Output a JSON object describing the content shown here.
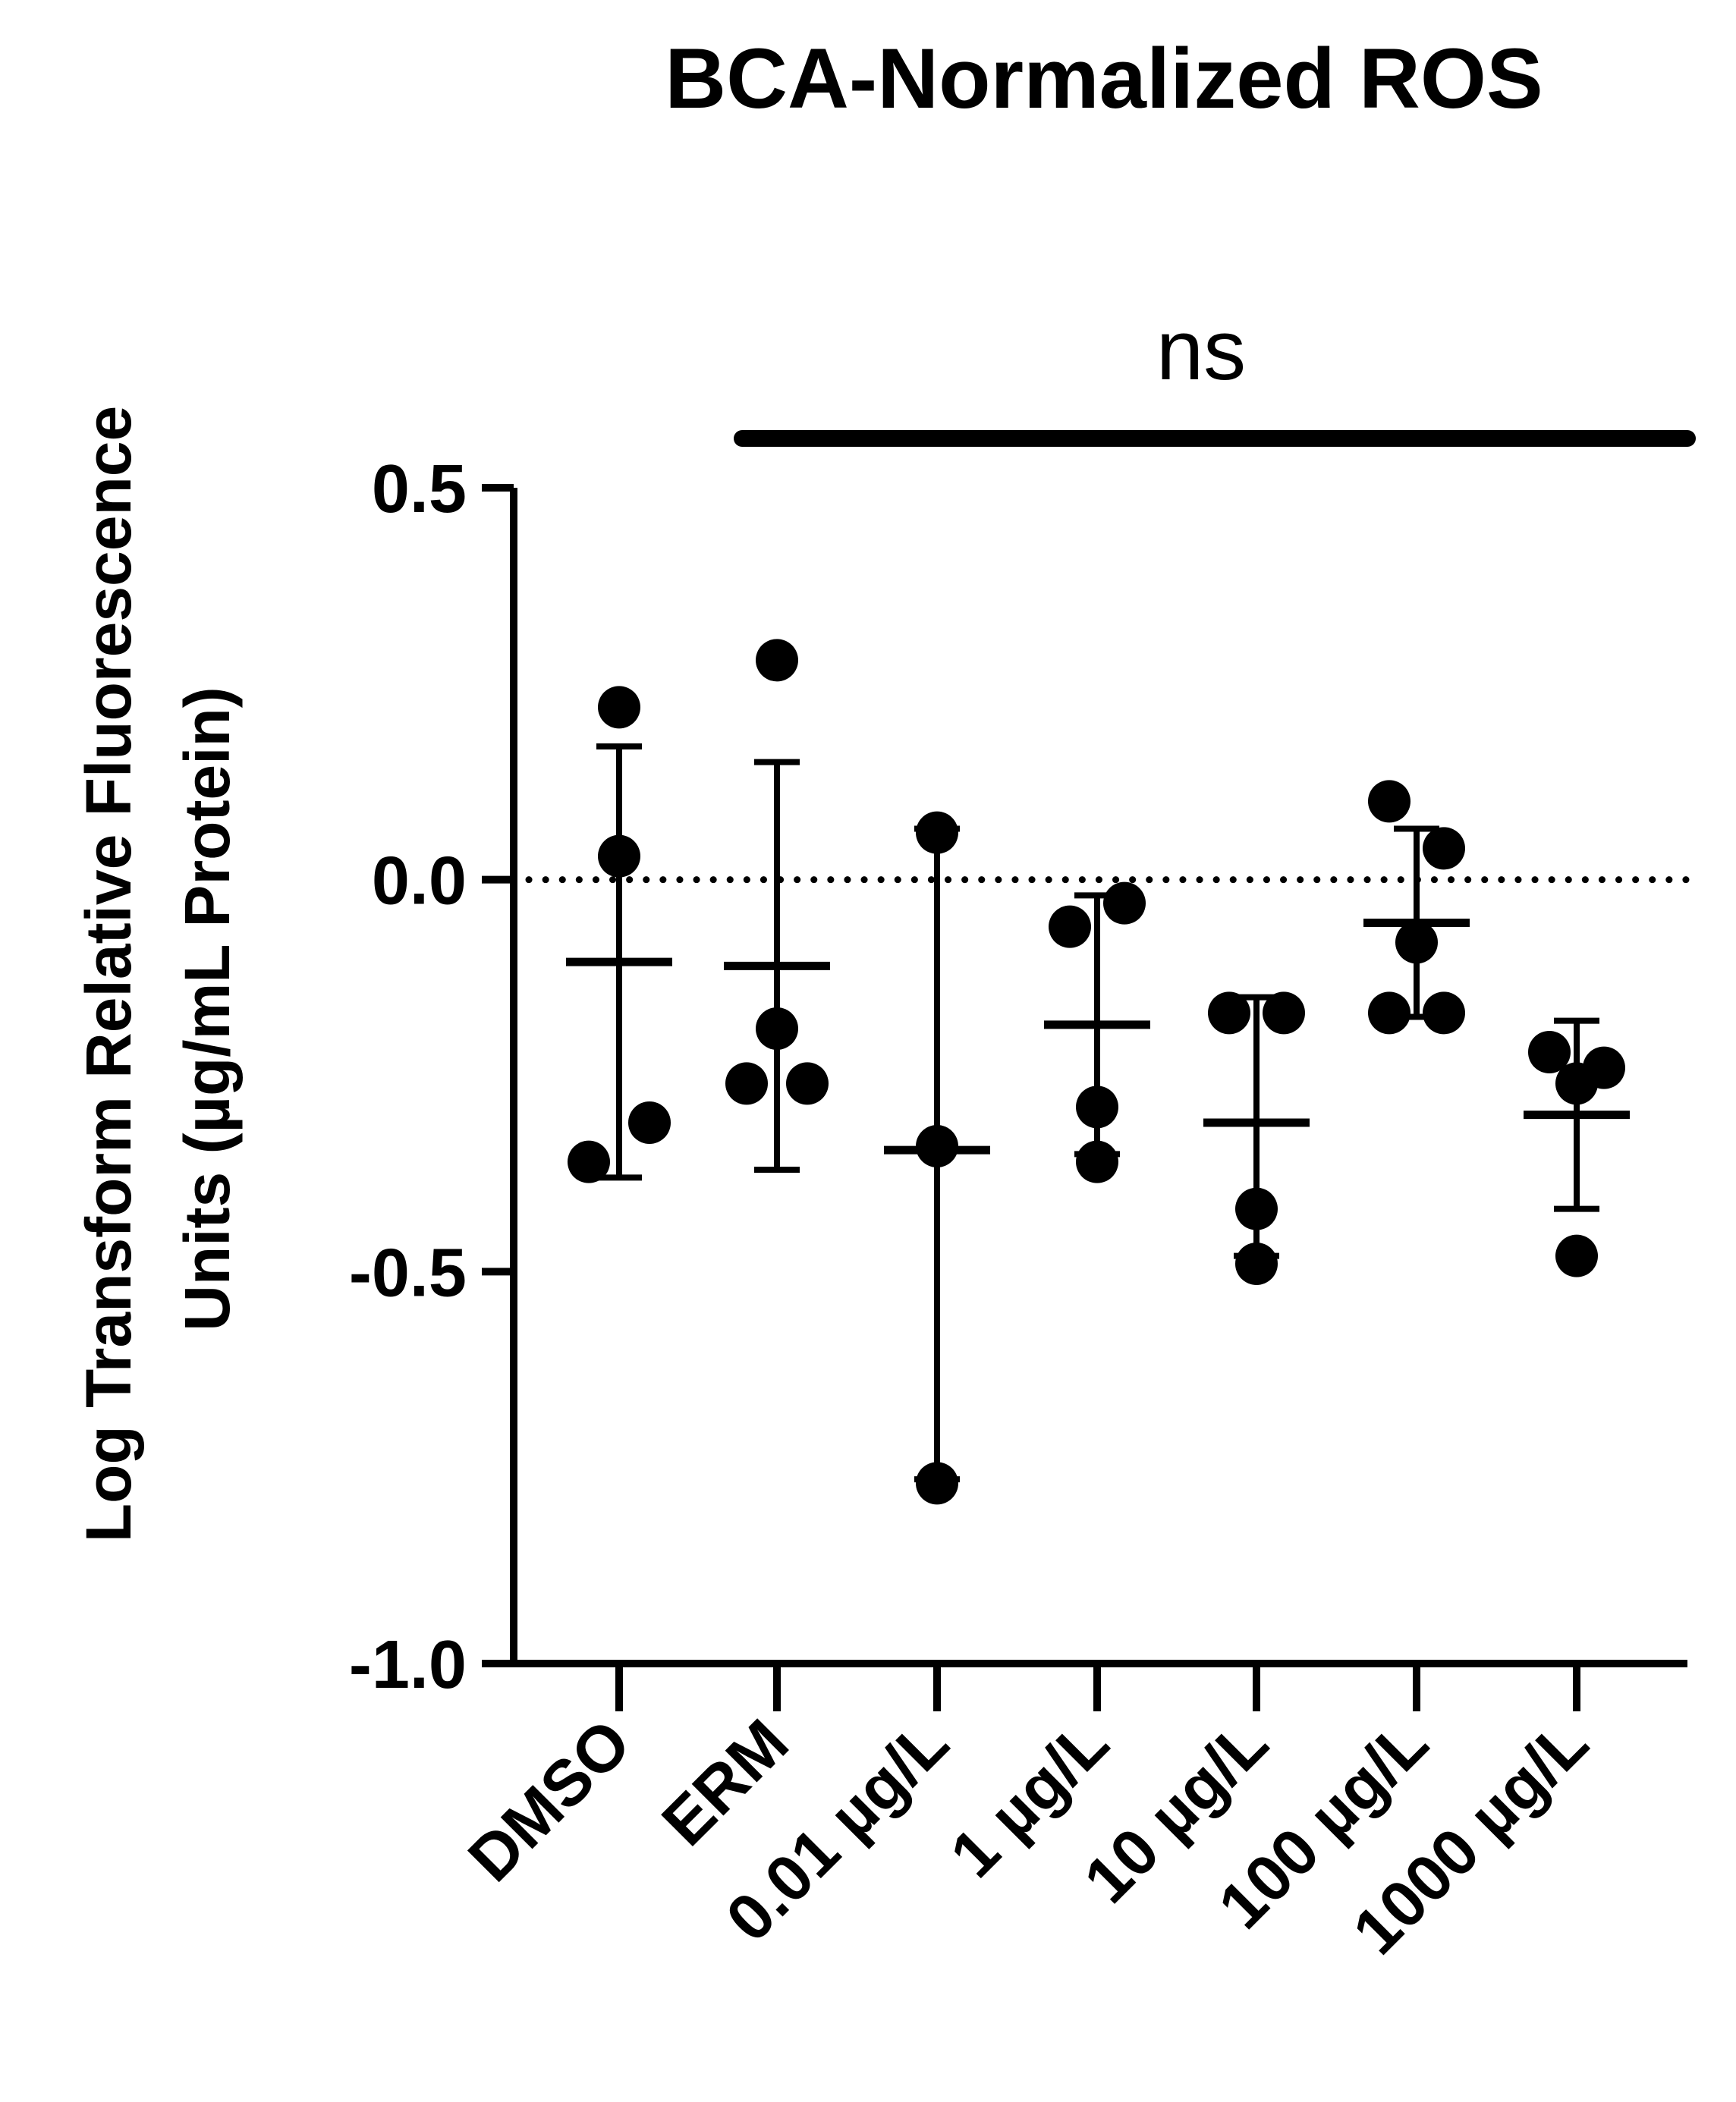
{
  "chart_data": {
    "type": "scatter",
    "title": "BCA-Normalized ROS",
    "ylabel_lines": [
      "Log Transform Relative Fluorescence",
      "Units (µg/mL Protein)"
    ],
    "xlabel": "",
    "ylim": [
      -1.0,
      0.5
    ],
    "yticks": [
      0.5,
      0.0,
      -0.5,
      -1.0
    ],
    "ytick_labels": [
      "0.5",
      "0.0",
      "-0.5",
      "-1.0"
    ],
    "reference_line": 0.0,
    "categories": [
      "DMSO",
      "ERM",
      "0.01 µg/L",
      "1 µg/L",
      "10 µg/L",
      "100 µg/L",
      "1000 µg/L"
    ],
    "groups": [
      {
        "name": "DMSO",
        "points": [
          0.22,
          0.03,
          -0.31,
          -0.36
        ],
        "mean": -0.105,
        "sd_upper": 0.17,
        "sd_lower": -0.38
      },
      {
        "name": "ERM",
        "points": [
          0.28,
          -0.19,
          -0.26,
          -0.26
        ],
        "mean": -0.11,
        "sd_upper": 0.15,
        "sd_lower": -0.37
      },
      {
        "name": "0.01 µg/L",
        "points": [
          0.06,
          -0.34,
          -0.77
        ],
        "mean": -0.345,
        "sd_upper": 0.065,
        "sd_lower": -0.765
      },
      {
        "name": "1 µg/L",
        "points": [
          -0.06,
          -0.03,
          -0.29,
          -0.36
        ],
        "mean": -0.185,
        "sd_upper": -0.02,
        "sd_lower": -0.35
      },
      {
        "name": "10 µg/L",
        "points": [
          -0.17,
          -0.17,
          -0.42,
          -0.49
        ],
        "mean": -0.31,
        "sd_upper": -0.15,
        "sd_lower": -0.48
      },
      {
        "name": "100 µg/L",
        "points": [
          0.1,
          0.04,
          -0.08,
          -0.17,
          -0.17
        ],
        "mean": -0.055,
        "sd_upper": 0.065,
        "sd_lower": -0.175
      },
      {
        "name": "1000 µg/L",
        "points": [
          -0.22,
          -0.24,
          -0.26,
          -0.48
        ],
        "mean": -0.3,
        "sd_upper": -0.18,
        "sd_lower": -0.42
      }
    ],
    "significance": {
      "label": "ns",
      "from_group": "ERM",
      "to_group": "1000 µg/L"
    }
  }
}
